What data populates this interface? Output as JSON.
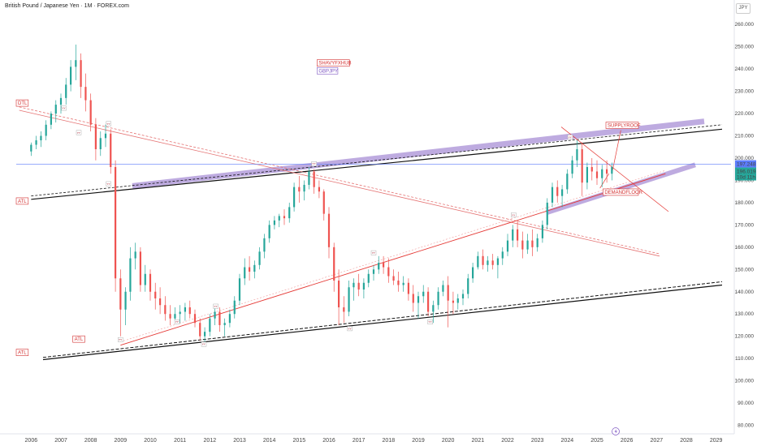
{
  "header": {
    "title": "British Pound / Japanese Yen · 1M · FOREX.com",
    "currency": "JPY"
  },
  "chart_data": {
    "type": "candlestick",
    "title": "British Pound / Japanese Yen · 1M · FOREX.com",
    "x_tick_labels": [
      "2006",
      "2007",
      "2008",
      "2009",
      "2010",
      "2011",
      "2012",
      "2013",
      "2014",
      "2015",
      "2016",
      "2017",
      "2018",
      "2019",
      "2020",
      "2021",
      "2022",
      "2023",
      "2024",
      "2025",
      "2026",
      "2027",
      "2028",
      "2029"
    ],
    "y_tick_labels": [
      "260.000",
      "250.000",
      "240.000",
      "230.000",
      "220.000",
      "210.000",
      "200.000",
      "190.000",
      "180.000",
      "170.000",
      "160.000",
      "150.000",
      "140.000",
      "130.000",
      "120.000",
      "110.000",
      "100.000",
      "90.000",
      "80.000"
    ],
    "y_range": [
      78,
      263
    ],
    "x_range": [
      2005.5,
      2029.5
    ],
    "up_color": "#26a69a",
    "down_color": "#ef5350",
    "price_levels": {
      "last_close": "197.248",
      "last_price": "196.019",
      "countdown": "10d 11h"
    },
    "candles": [
      [
        2006.0,
        203,
        207,
        201,
        206
      ],
      [
        2006.17,
        206,
        210,
        204,
        208
      ],
      [
        2006.33,
        208,
        212,
        205,
        210
      ],
      [
        2006.5,
        210,
        217,
        208,
        215
      ],
      [
        2006.67,
        215,
        221,
        213,
        220
      ],
      [
        2006.83,
        220,
        226,
        216,
        224
      ],
      [
        2007.0,
        224,
        229,
        220,
        227
      ],
      [
        2007.17,
        227,
        236,
        224,
        233
      ],
      [
        2007.33,
        233,
        244,
        230,
        241
      ],
      [
        2007.5,
        241,
        251,
        235,
        244
      ],
      [
        2007.67,
        244,
        247,
        227,
        232
      ],
      [
        2007.83,
        232,
        238,
        221,
        226
      ],
      [
        2008.0,
        226,
        229,
        212,
        215
      ],
      [
        2008.17,
        215,
        218,
        199,
        204
      ],
      [
        2008.33,
        204,
        212,
        201,
        209
      ],
      [
        2008.5,
        209,
        215,
        205,
        211
      ],
      [
        2008.67,
        211,
        213,
        193,
        196
      ],
      [
        2008.83,
        196,
        199,
        140,
        146
      ],
      [
        2009.0,
        146,
        150,
        120,
        132
      ],
      [
        2009.17,
        132,
        142,
        125,
        140
      ],
      [
        2009.33,
        140,
        160,
        136,
        155
      ],
      [
        2009.5,
        155,
        162,
        150,
        158
      ],
      [
        2009.67,
        158,
        160,
        140,
        143
      ],
      [
        2009.83,
        143,
        152,
        140,
        148
      ],
      [
        2010.0,
        148,
        150,
        136,
        140
      ],
      [
        2010.17,
        140,
        144,
        132,
        137
      ],
      [
        2010.33,
        137,
        142,
        130,
        134
      ],
      [
        2010.5,
        134,
        138,
        127,
        130
      ],
      [
        2010.67,
        130,
        134,
        125,
        128
      ],
      [
        2010.83,
        128,
        133,
        126,
        130
      ],
      [
        2011.0,
        130,
        134,
        126,
        131
      ],
      [
        2011.17,
        131,
        135,
        127,
        133
      ],
      [
        2011.33,
        133,
        136,
        128,
        130
      ],
      [
        2011.5,
        130,
        132,
        124,
        126
      ],
      [
        2011.67,
        126,
        128,
        118,
        120
      ],
      [
        2011.83,
        120,
        124,
        117,
        122
      ],
      [
        2012.0,
        122,
        130,
        120,
        128
      ],
      [
        2012.17,
        128,
        134,
        125,
        131
      ],
      [
        2012.33,
        131,
        133,
        122,
        125
      ],
      [
        2012.5,
        125,
        128,
        120,
        126
      ],
      [
        2012.67,
        126,
        132,
        124,
        130
      ],
      [
        2012.83,
        130,
        138,
        128,
        136
      ],
      [
        2013.0,
        136,
        148,
        134,
        146
      ],
      [
        2013.17,
        146,
        155,
        143,
        151
      ],
      [
        2013.33,
        151,
        156,
        145,
        149
      ],
      [
        2013.5,
        149,
        154,
        146,
        152
      ],
      [
        2013.67,
        152,
        160,
        150,
        158
      ],
      [
        2013.83,
        158,
        166,
        155,
        164
      ],
      [
        2014.0,
        164,
        172,
        162,
        170
      ],
      [
        2014.17,
        170,
        174,
        168,
        172
      ],
      [
        2014.33,
        172,
        175,
        169,
        174
      ],
      [
        2014.5,
        174,
        177,
        170,
        173
      ],
      [
        2014.67,
        173,
        180,
        171,
        178
      ],
      [
        2014.83,
        178,
        189,
        176,
        187
      ],
      [
        2015.0,
        187,
        192,
        180,
        185
      ],
      [
        2015.17,
        185,
        190,
        181,
        188
      ],
      [
        2015.33,
        188,
        196,
        186,
        194
      ],
      [
        2015.5,
        194,
        195,
        184,
        187
      ],
      [
        2015.67,
        187,
        190,
        182,
        185
      ],
      [
        2015.83,
        185,
        186,
        172,
        175
      ],
      [
        2016.0,
        175,
        178,
        155,
        160
      ],
      [
        2016.17,
        160,
        162,
        140,
        145
      ],
      [
        2016.33,
        145,
        150,
        125,
        133
      ],
      [
        2016.5,
        133,
        138,
        126,
        131
      ],
      [
        2016.67,
        131,
        145,
        129,
        142
      ],
      [
        2016.83,
        142,
        146,
        136,
        144
      ],
      [
        2017.0,
        144,
        148,
        138,
        141
      ],
      [
        2017.17,
        141,
        146,
        137,
        144
      ],
      [
        2017.33,
        144,
        150,
        142,
        148
      ],
      [
        2017.5,
        148,
        152,
        145,
        150
      ],
      [
        2017.67,
        150,
        156,
        148,
        153
      ],
      [
        2017.83,
        153,
        156,
        148,
        151
      ],
      [
        2018.0,
        151,
        155,
        144,
        147
      ],
      [
        2018.17,
        147,
        150,
        143,
        145
      ],
      [
        2018.33,
        145,
        149,
        140,
        143
      ],
      [
        2018.5,
        143,
        147,
        140,
        144
      ],
      [
        2018.67,
        144,
        146,
        136,
        139
      ],
      [
        2018.83,
        139,
        143,
        131,
        135
      ],
      [
        2019.0,
        135,
        140,
        128,
        138
      ],
      [
        2019.17,
        138,
        143,
        135,
        140
      ],
      [
        2019.33,
        140,
        142,
        129,
        131
      ],
      [
        2019.5,
        131,
        136,
        126,
        134
      ],
      [
        2019.67,
        134,
        142,
        132,
        140
      ],
      [
        2019.83,
        140,
        145,
        138,
        143
      ],
      [
        2020.0,
        143,
        147,
        124,
        136
      ],
      [
        2020.17,
        136,
        140,
        130,
        135
      ],
      [
        2020.33,
        135,
        139,
        132,
        137
      ],
      [
        2020.5,
        137,
        141,
        134,
        139
      ],
      [
        2020.67,
        139,
        148,
        137,
        146
      ],
      [
        2020.83,
        146,
        153,
        144,
        151
      ],
      [
        2021.0,
        151,
        158,
        150,
        156
      ],
      [
        2021.17,
        156,
        159,
        150,
        152
      ],
      [
        2021.33,
        152,
        156,
        149,
        154
      ],
      [
        2021.5,
        154,
        157,
        150,
        152
      ],
      [
        2021.67,
        152,
        156,
        146,
        155
      ],
      [
        2021.83,
        155,
        160,
        152,
        158
      ],
      [
        2022.0,
        158,
        166,
        156,
        163
      ],
      [
        2022.17,
        163,
        170,
        160,
        168
      ],
      [
        2022.33,
        168,
        172,
        160,
        163
      ],
      [
        2022.5,
        163,
        167,
        155,
        159
      ],
      [
        2022.67,
        159,
        166,
        157,
        163
      ],
      [
        2022.83,
        163,
        168,
        156,
        160
      ],
      [
        2023.0,
        160,
        166,
        158,
        164
      ],
      [
        2023.17,
        164,
        172,
        162,
        170
      ],
      [
        2023.33,
        170,
        182,
        168,
        180
      ],
      [
        2023.5,
        180,
        189,
        178,
        187
      ],
      [
        2023.67,
        187,
        190,
        180,
        183
      ],
      [
        2023.83,
        183,
        188,
        178,
        186
      ],
      [
        2024.0,
        186,
        195,
        184,
        193
      ],
      [
        2024.17,
        193,
        201,
        191,
        199
      ],
      [
        2024.33,
        199,
        208,
        196,
        204
      ],
      [
        2024.5,
        204,
        207,
        183,
        189
      ],
      [
        2024.67,
        189,
        198,
        186,
        196
      ],
      [
        2024.83,
        196,
        200,
        190,
        194
      ],
      [
        2025.0,
        194,
        199,
        188,
        191
      ],
      [
        2025.17,
        191,
        197,
        187,
        195
      ],
      [
        2025.33,
        195,
        199,
        189,
        193
      ],
      [
        2025.5,
        193,
        198,
        190,
        196
      ]
    ],
    "annotations": {
      "labels": [
        {
          "text": "DTL",
          "x": 2005.5,
          "y": 224,
          "color": "#d32f2f"
        },
        {
          "text": "ATL",
          "x": 2005.5,
          "y": 180,
          "color": "#d32f2f"
        },
        {
          "text": "ATL",
          "x": 2007.4,
          "y": 118,
          "color": "#d32f2f"
        },
        {
          "text": "ATL",
          "x": 2005.5,
          "y": 112,
          "color": "#d32f2f"
        },
        {
          "text": "SHAVYFXHUB",
          "x": 2015.6,
          "y": 242,
          "color": "#d32f2f"
        },
        {
          "text": "GBPJPY",
          "x": 2015.6,
          "y": 238.5,
          "color": "#7e57c2"
        },
        {
          "text": "SUPPLYROOF",
          "x": 2025.3,
          "y": 214,
          "color": "#d32f2f"
        },
        {
          "text": "DEMANDFLOOR",
          "x": 2025.2,
          "y": 184,
          "color": "#d32f2f"
        }
      ],
      "marks": [
        {
          "text": "ʏʏ",
          "x": 2007.1,
          "y": 222
        },
        {
          "text": "ʏʏ",
          "x": 2007.6,
          "y": 211
        },
        {
          "text": "ʏʏ",
          "x": 2008.6,
          "y": 215
        },
        {
          "text": "ʏʏ",
          "x": 2008.6,
          "y": 188
        },
        {
          "text": "ʏʏ",
          "x": 2009.0,
          "y": 118
        },
        {
          "text": "ʏʏ",
          "x": 2010.9,
          "y": 126
        },
        {
          "text": "ʏʏ",
          "x": 2012.2,
          "y": 133
        },
        {
          "text": "ʏʏ",
          "x": 2011.8,
          "y": 116
        },
        {
          "text": "ʏʏ",
          "x": 2015.5,
          "y": 197
        },
        {
          "text": "ʏʏ",
          "x": 2016.7,
          "y": 123
        },
        {
          "text": "ʏʏ",
          "x": 2017.5,
          "y": 157
        },
        {
          "text": "ʏʏ",
          "x": 2019.4,
          "y": 126
        },
        {
          "text": "ʏʏ",
          "x": 2022.2,
          "y": 174
        },
        {
          "text": "ʏʏ",
          "x": 2024.1,
          "y": 209
        }
      ]
    }
  }
}
